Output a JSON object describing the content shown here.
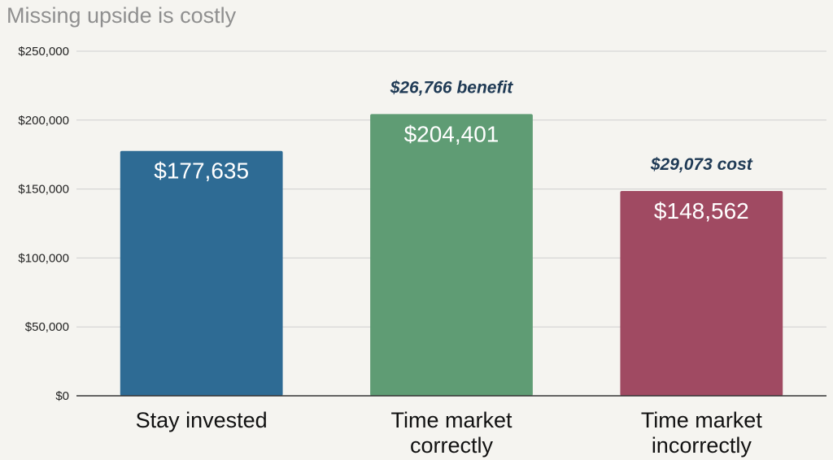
{
  "chart_data": {
    "type": "bar",
    "title": "Missing upside is costly",
    "categories": [
      [
        "Stay invested"
      ],
      [
        "Time market",
        "correctly"
      ],
      [
        "Time market",
        "incorrectly"
      ]
    ],
    "values": [
      177635,
      204401,
      148562
    ],
    "value_labels": [
      "$177,635",
      "$204,401",
      "$148,562"
    ],
    "annotations": [
      "",
      "$26,766 benefit",
      "$29,073 cost"
    ],
    "colors": [
      "#2e6b94",
      "#5f9c74",
      "#a04a62"
    ],
    "ylim": [
      0,
      250000
    ],
    "yticks": [
      0,
      50000,
      100000,
      150000,
      200000,
      250000
    ],
    "ytick_labels": [
      "$0",
      "$50,000",
      "$100,000",
      "$150,000",
      "$200,000",
      "$250,000"
    ],
    "xlabel": "",
    "ylabel": "",
    "grid": true,
    "legend": "none"
  }
}
